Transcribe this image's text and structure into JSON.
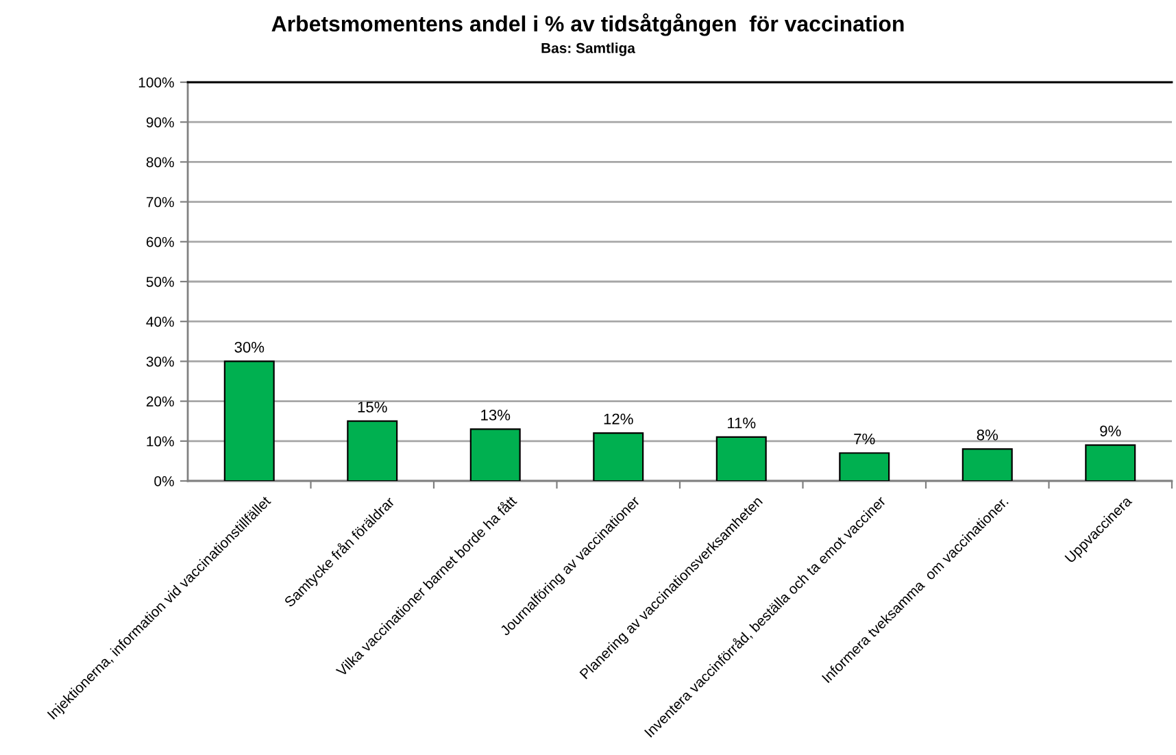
{
  "chart_data": {
    "type": "bar",
    "title": "Arbetsmomentens andel i % av tidsåtgången  för vaccination",
    "subtitle": "Bas: Samtliga",
    "categories": [
      "Injektionerna, information vid vaccinationstillfället",
      "Samtycke från föräldrar",
      "Vilka vaccinationer barnet borde ha fått",
      "Journalföring av vaccinationer",
      "Planering av vaccinationsverksamheten",
      "Inventera vaccinförråd, beställa och ta emot vacciner",
      "Informera tveksamma  om vaccinationer.",
      "Uppvaccinera"
    ],
    "values": [
      30,
      15,
      13,
      12,
      11,
      7,
      8,
      9
    ],
    "value_labels": [
      "30%",
      "15%",
      "13%",
      "12%",
      "11%",
      "7%",
      "8%",
      "9%"
    ],
    "color": "#00b050",
    "ylim": [
      0,
      100
    ],
    "yticks": [
      {
        "value": 0,
        "label": "0%"
      },
      {
        "value": 10,
        "label": "10%"
      },
      {
        "value": 20,
        "label": "20%"
      },
      {
        "value": 30,
        "label": "30%"
      },
      {
        "value": 40,
        "label": "40%"
      },
      {
        "value": 50,
        "label": "50%"
      },
      {
        "value": 60,
        "label": "60%"
      },
      {
        "value": 70,
        "label": "70%"
      },
      {
        "value": 80,
        "label": "80%"
      },
      {
        "value": 90,
        "label": "90%"
      },
      {
        "value": 100,
        "label": "100%"
      }
    ],
    "grid": "y",
    "legend": false
  }
}
